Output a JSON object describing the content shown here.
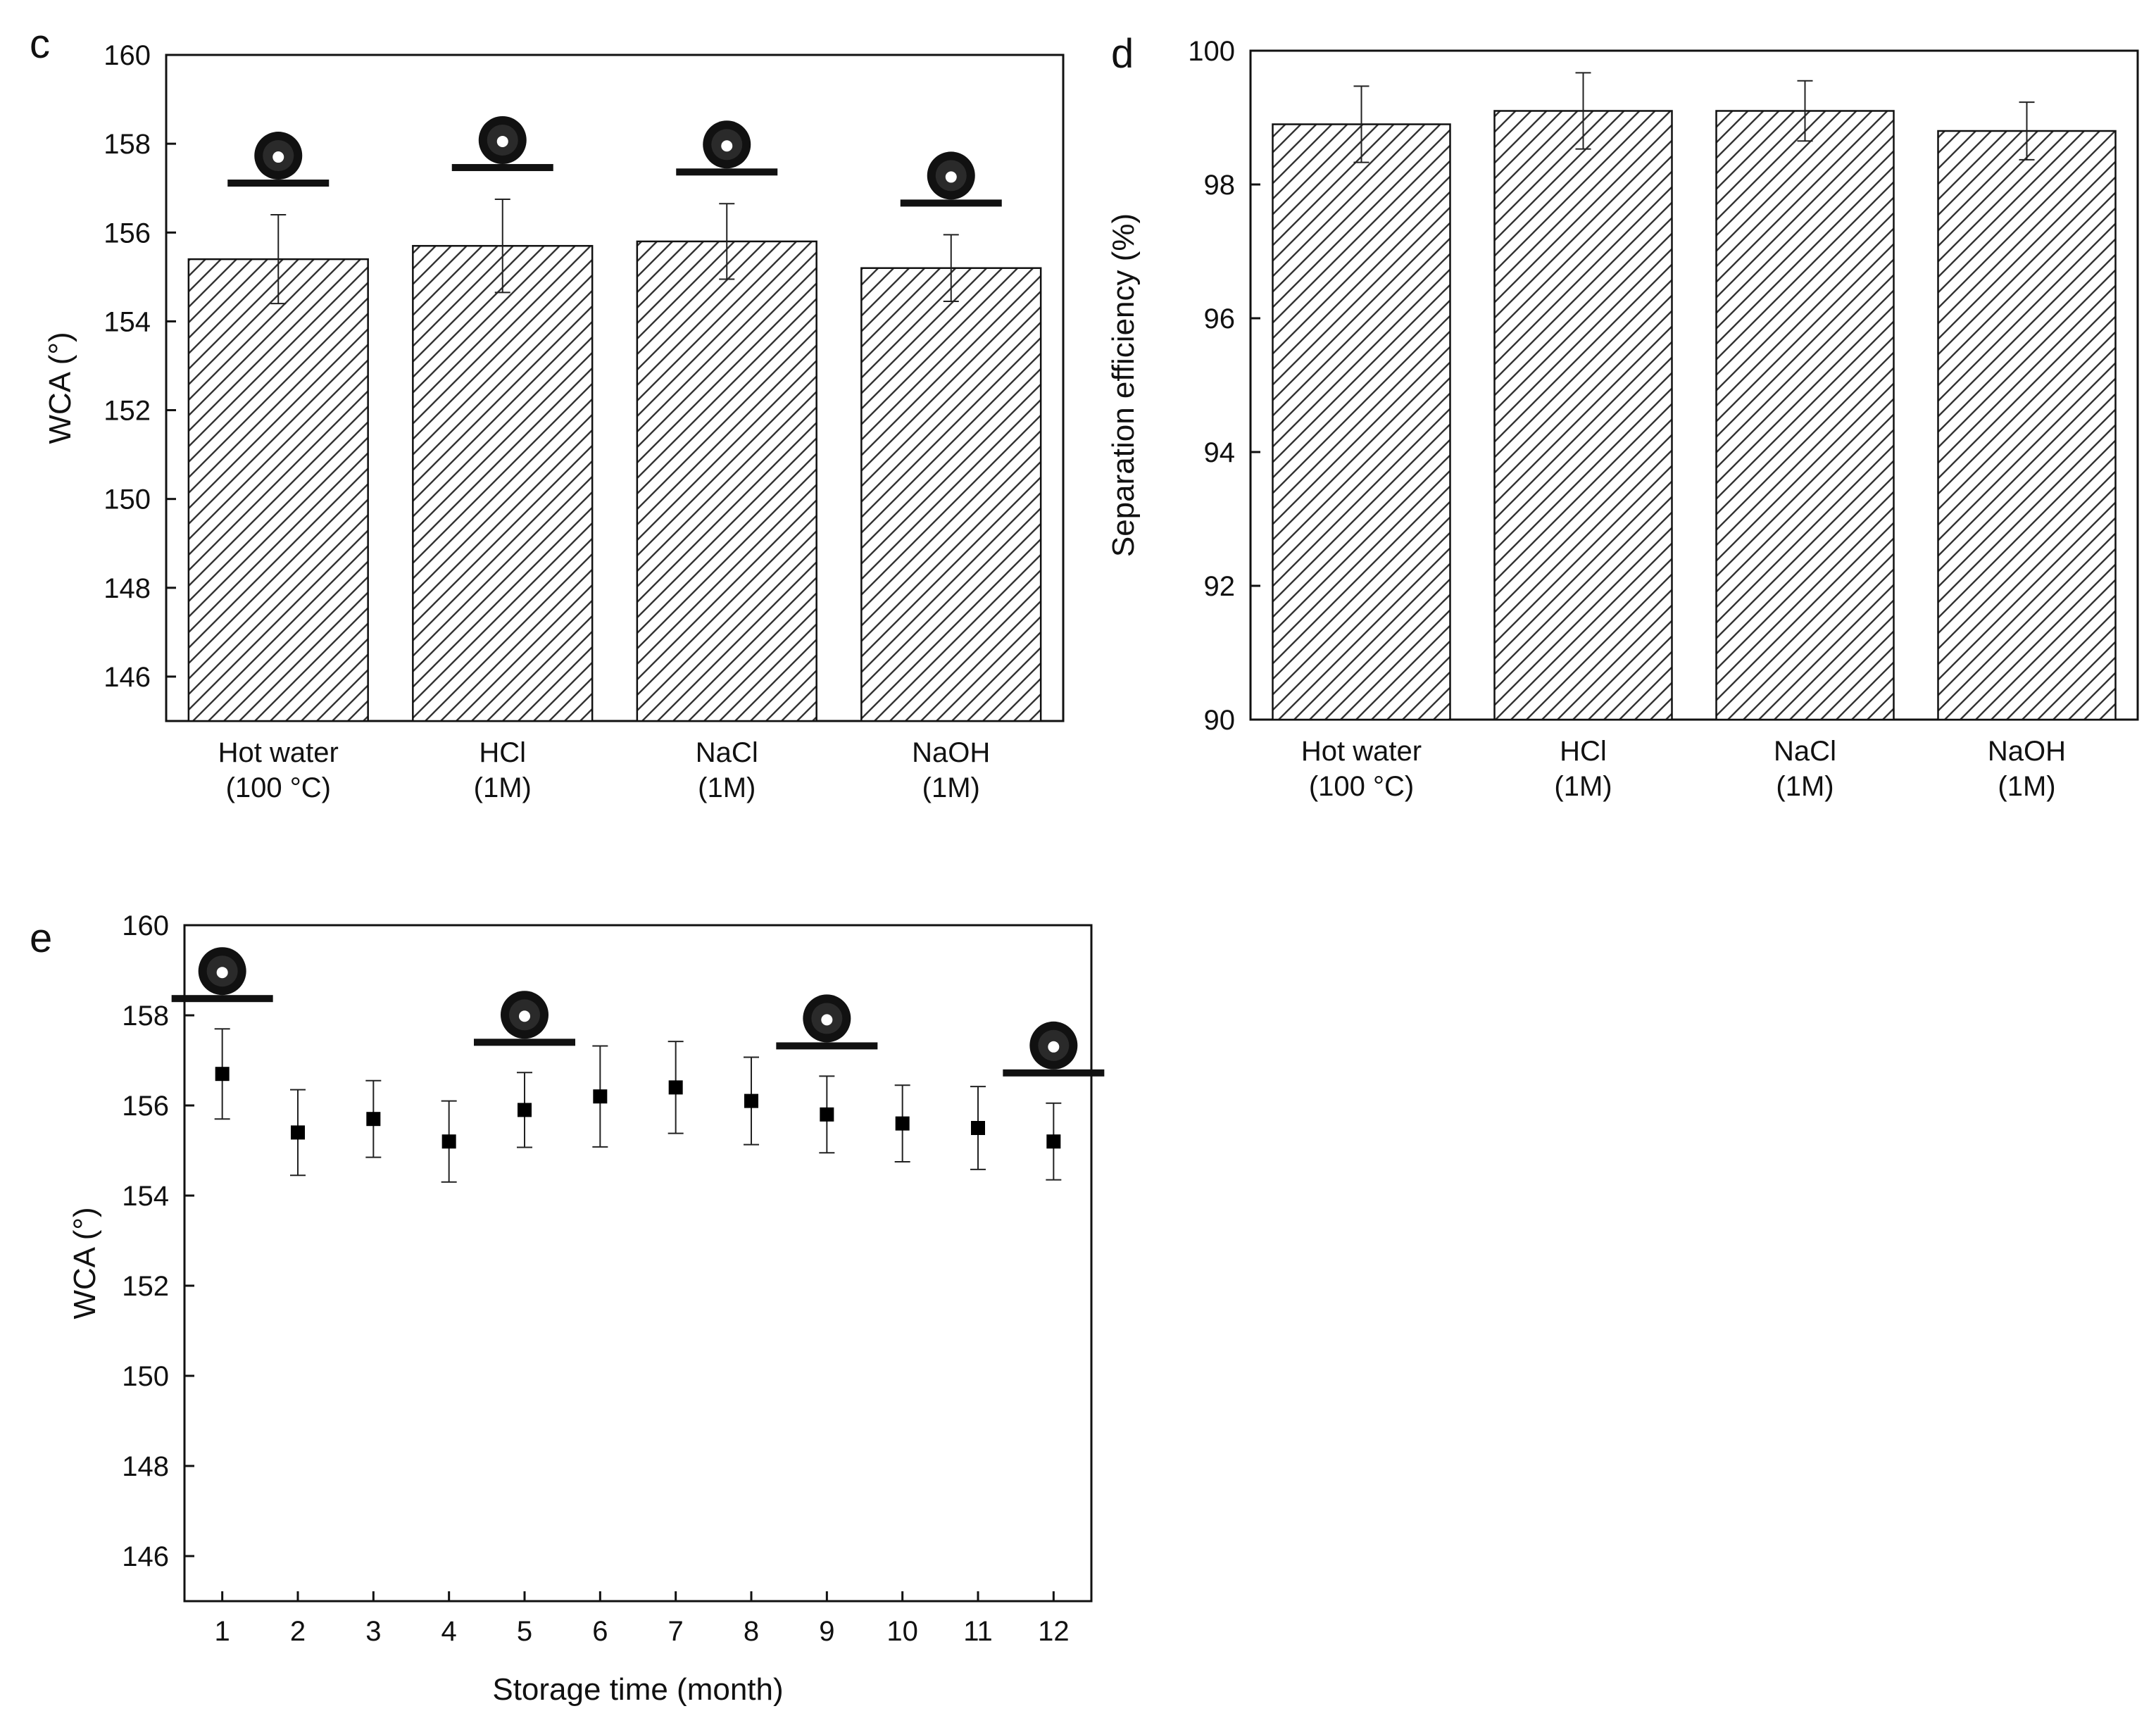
{
  "chart_data": [
    {
      "panel": "c",
      "type": "bar",
      "title": "",
      "xlabel": "",
      "ylabel": "WCA (°)",
      "ylim": [
        145,
        160
      ],
      "yticks": [
        146,
        148,
        150,
        152,
        154,
        156,
        158,
        160
      ],
      "categories": [
        {
          "line1": "Hot water",
          "line2": "(100 °C)"
        },
        {
          "line1": "HCl",
          "line2": "(1M)"
        },
        {
          "line1": "NaCl",
          "line2": "(1M)"
        },
        {
          "line1": "NaOH",
          "line2": "(1M)"
        }
      ],
      "values": [
        155.4,
        155.7,
        155.8,
        155.2
      ],
      "errors": [
        1.0,
        1.05,
        0.85,
        0.75
      ],
      "droplet_insets": [
        true,
        true,
        true,
        true
      ],
      "bar_pattern": "diagonal-hatch"
    },
    {
      "panel": "d",
      "type": "bar",
      "title": "",
      "xlabel": "",
      "ylabel": "Separation efficiency (%)",
      "ylim": [
        90,
        100
      ],
      "yticks": [
        90,
        92,
        94,
        96,
        98,
        100
      ],
      "categories": [
        {
          "line1": "Hot water",
          "line2": "(100 °C)"
        },
        {
          "line1": "HCl",
          "line2": "(1M)"
        },
        {
          "line1": "NaCl",
          "line2": "(1M)"
        },
        {
          "line1": "NaOH",
          "line2": "(1M)"
        }
      ],
      "values": [
        98.9,
        99.1,
        99.1,
        98.8
      ],
      "errors": [
        0.57,
        0.57,
        0.45,
        0.43
      ],
      "bar_pattern": "diagonal-hatch"
    },
    {
      "panel": "e",
      "type": "scatter",
      "title": "",
      "xlabel": "Storage time (month)",
      "ylabel": "WCA (°)",
      "ylim": [
        145,
        160
      ],
      "xlim": [
        0.5,
        12.5
      ],
      "yticks": [
        146,
        148,
        150,
        152,
        154,
        156,
        158,
        160
      ],
      "xticks": [
        1,
        2,
        3,
        4,
        5,
        6,
        7,
        8,
        9,
        10,
        11,
        12
      ],
      "x": [
        1,
        2,
        3,
        4,
        5,
        6,
        7,
        8,
        9,
        10,
        11,
        12
      ],
      "y": [
        156.7,
        155.4,
        155.7,
        155.2,
        155.9,
        156.2,
        156.4,
        156.1,
        155.8,
        155.6,
        155.5,
        155.2
      ],
      "errors": [
        1.0,
        0.95,
        0.85,
        0.9,
        0.83,
        1.12,
        1.02,
        0.97,
        0.85,
        0.85,
        0.92,
        0.85
      ],
      "droplet_insets_at": [
        1,
        5,
        9,
        12
      ],
      "marker": "square"
    }
  ]
}
